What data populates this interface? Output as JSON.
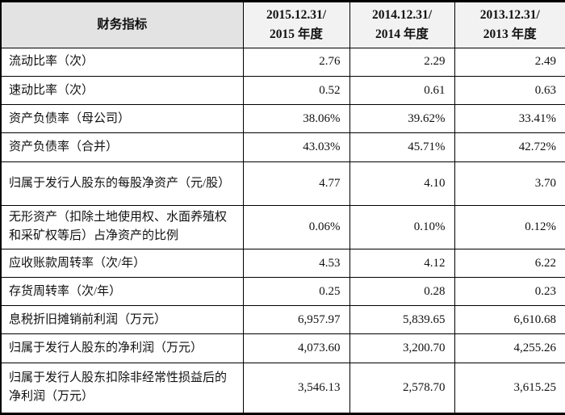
{
  "table": {
    "header": {
      "indicator_label": "财务指标",
      "periods": [
        {
          "line1": "2015.12.31/",
          "line2": "2015 年度"
        },
        {
          "line1": "2014.12.31/",
          "line2": "2014 年度"
        },
        {
          "line1": "2013.12.31/",
          "line2": "2013 年度"
        }
      ]
    },
    "rows": [
      {
        "label": "流动比率（次）",
        "values": [
          "2.76",
          "2.29",
          "2.49"
        ]
      },
      {
        "label": "速动比率（次）",
        "values": [
          "0.52",
          "0.61",
          "0.63"
        ]
      },
      {
        "label": "资产负债率（母公司）",
        "values": [
          "38.06%",
          "39.62%",
          "33.41%"
        ]
      },
      {
        "label": "资产负债率（合并）",
        "values": [
          "43.03%",
          "45.71%",
          "42.72%"
        ]
      },
      {
        "label": "归属于发行人股东的每股净资产（元/股）",
        "values": [
          "4.77",
          "4.10",
          "3.70"
        ]
      },
      {
        "label": "无形资产（扣除土地使用权、水面养殖权和采矿权等后）占净资产的比例",
        "values": [
          "0.06%",
          "0.10%",
          "0.12%"
        ]
      },
      {
        "label": "应收账款周转率（次/年）",
        "values": [
          "4.53",
          "4.12",
          "6.22"
        ]
      },
      {
        "label": "存货周转率（次/年）",
        "values": [
          "0.25",
          "0.28",
          "0.23"
        ]
      },
      {
        "label": "息税折旧摊销前利润（万元）",
        "values": [
          "6,957.97",
          "5,839.65",
          "6,610.68"
        ]
      },
      {
        "label": "归属于发行人股东的净利润（万元）",
        "values": [
          "4,073.60",
          "3,200.70",
          "4,255.26"
        ]
      },
      {
        "label": "归属于发行人股东扣除非经常性损益后的净利润（万元）",
        "values": [
          "3,546.13",
          "2,578.70",
          "3,615.25"
        ]
      }
    ],
    "colors": {
      "border": "#000000",
      "header_indicator_bg": "#e3e3e3",
      "header_period_bg": "#f2f2f2",
      "body_bg": "#ffffff",
      "text": "#111111"
    }
  }
}
